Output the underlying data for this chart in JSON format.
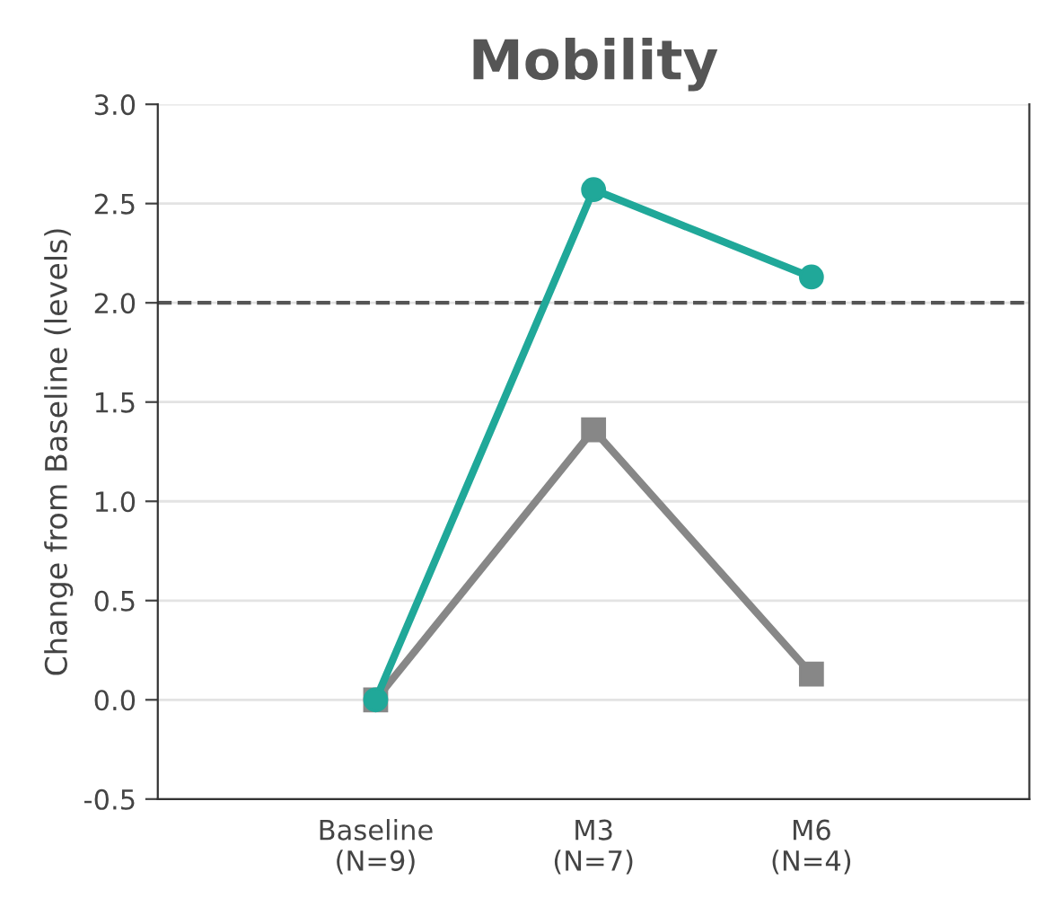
{
  "chart_data": {
    "type": "line",
    "title": "Mobility",
    "ylabel": "Change from Baseline (levels)",
    "categories": [
      "Baseline\n(N=9)",
      "M3\n(N=7)",
      "M6\n(N=4)"
    ],
    "series": [
      {
        "color": "#20a899",
        "values": [
          0.0,
          2.57,
          2.13
        ],
        "marker": "circle"
      },
      {
        "color": "#878787",
        "values": [
          0.0,
          1.36,
          0.13
        ],
        "marker": "square"
      }
    ],
    "ylim": [
      -0.5,
      3.0
    ],
    "yticks": [
      -0.5,
      {
        "value": 0,
        "label": "0.0"
      },
      0.5,
      {
        "value": 1,
        "label": "1.0"
      },
      1.5,
      {
        "value": 2,
        "label": "2.0"
      },
      2.5,
      {
        "value": 3,
        "label": "3.0"
      }
    ],
    "grid": "y",
    "legend": false,
    "line_style": "solid",
    "ref_lines": [
      {
        "axis": "y",
        "value": 2.0,
        "color": "#555555",
        "line_style": "dashed"
      }
    ]
  }
}
